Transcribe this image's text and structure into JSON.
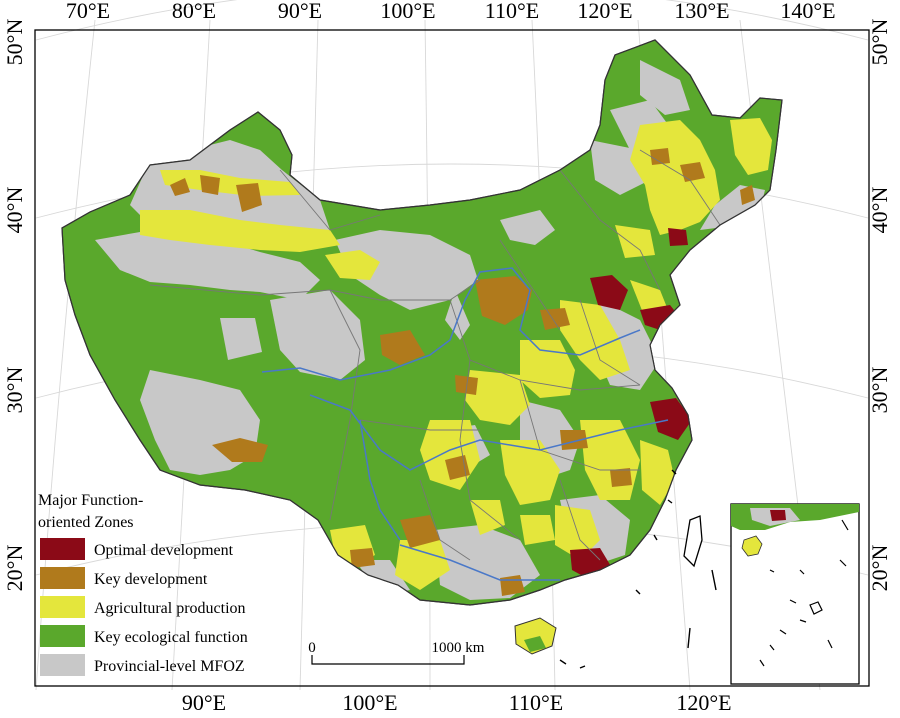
{
  "axes": {
    "top": [
      "70°E",
      "80°E",
      "90°E",
      "100°E",
      "110°E",
      "120°E",
      "130°E",
      "140°E"
    ],
    "bottom": [
      "90°E",
      "100°E",
      "110°E",
      "120°E"
    ],
    "left": [
      "50°N",
      "40°N",
      "30°N",
      "20°N"
    ],
    "right": [
      "50°N",
      "40°N",
      "30°N",
      "20°N"
    ]
  },
  "legend": {
    "title_line1": "Major Function-",
    "title_line2": "oriented Zones",
    "items": [
      {
        "label": "Optimal development",
        "color": "#8b0a17"
      },
      {
        "label": "Key development",
        "color": "#b07a1c"
      },
      {
        "label": "Agricultural production",
        "color": "#e4e63c"
      },
      {
        "label": "Key ecological function",
        "color": "#5aa82c"
      },
      {
        "label": "Provincial-level MFOZ",
        "color": "#c8c8c8"
      }
    ]
  },
  "scale_bar": {
    "start": "0",
    "end": "1000 km"
  },
  "colors": {
    "optimal": "#8b0a17",
    "key": "#b07a1c",
    "agri": "#e4e63c",
    "eco": "#5aa82c",
    "prov": "#c8c8c8",
    "river": "#4a78c8",
    "border": "#777777"
  }
}
